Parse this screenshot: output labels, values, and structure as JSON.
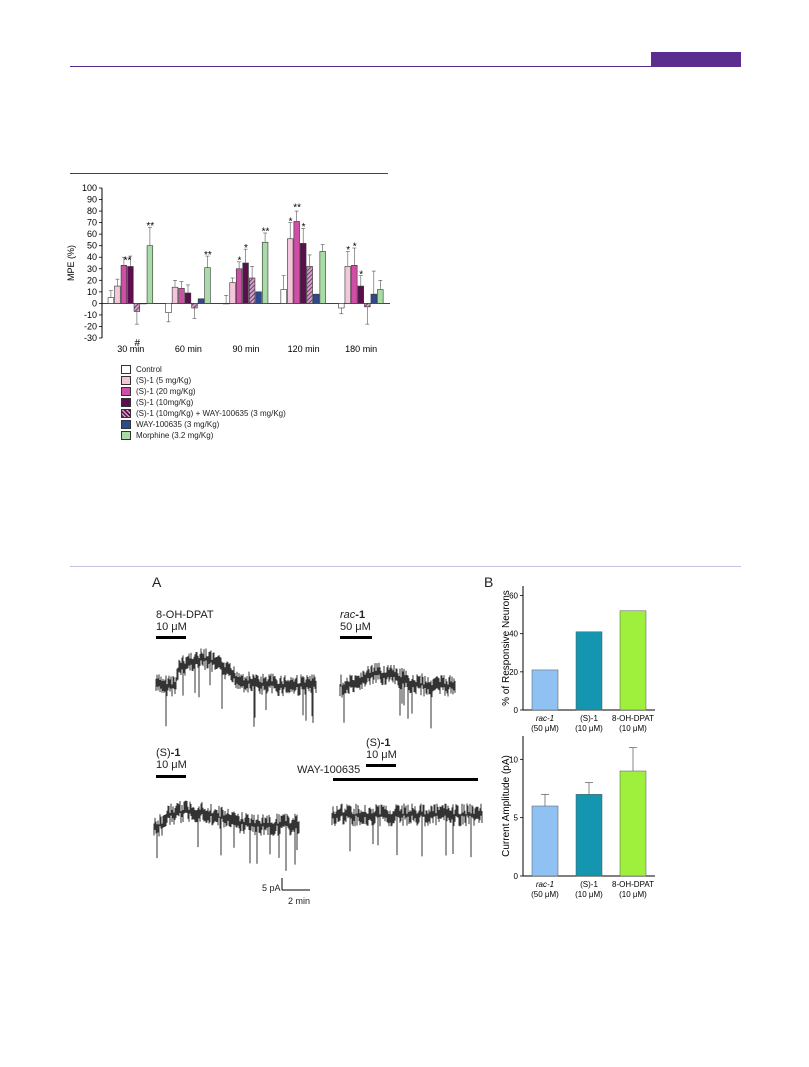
{
  "page": {
    "header_rule_color": "#5b2d8e",
    "header_tab_color": "#5b2d8e",
    "section_rule_color": "#c9bfe0"
  },
  "chart_data": [
    {
      "type": "bar",
      "categories": [
        "30 min",
        "60 min",
        "90 min",
        "120 min",
        "180 min"
      ],
      "ylabel": "MPE (%)",
      "ylim": [
        -30,
        100
      ],
      "yticks": [
        -30,
        -20,
        -10,
        0,
        10,
        20,
        30,
        40,
        50,
        60,
        70,
        80,
        90,
        100
      ],
      "series": [
        {
          "name": "Control",
          "color": "#ffffff",
          "values": [
            5,
            -8,
            0,
            12,
            -4
          ],
          "errors": [
            6,
            8,
            7,
            12,
            5
          ]
        },
        {
          "name": "(S)-1 (5 mg/Kg)",
          "color": "#f4c6dc",
          "values": [
            15,
            14,
            18,
            56,
            32
          ],
          "errors": [
            6,
            6,
            4,
            14,
            13
          ]
        },
        {
          "name": "(S)-1 (20 mg/Kg)",
          "color": "#cf4fa6",
          "values": [
            33,
            13,
            30,
            71,
            33
          ],
          "errors": [
            7,
            6,
            6,
            9,
            15
          ]
        },
        {
          "name": "(S)-1 (10mg/Kg)",
          "color": "#5c0f4e",
          "values": [
            32,
            9,
            35,
            52,
            15
          ],
          "errors": [
            9,
            7,
            12,
            13,
            9
          ]
        },
        {
          "name": "(S)-1 (10mg/Kg) + WAY-100635 (3 mg/Kg)",
          "color": "#9a5a8e",
          "values": [
            -7,
            -4,
            22,
            32,
            -3
          ],
          "errors": [
            11,
            9,
            10,
            10,
            15
          ]
        },
        {
          "name": "WAY-100635 (3 mg/Kg)",
          "color": "#2e4a8e",
          "values": [
            0,
            4,
            10,
            8,
            8
          ],
          "errors": [
            0,
            0,
            0,
            0,
            20
          ]
        },
        {
          "name": "Morphine (3.2 mg/Kg)",
          "color": "#a9dba6",
          "values": [
            50,
            31,
            53,
            45,
            12
          ],
          "errors": [
            16,
            10,
            8,
            6,
            8
          ]
        }
      ],
      "annotations": [
        {
          "text": "**",
          "category": "30 min",
          "series": 2.5,
          "y": 38
        },
        {
          "text": "#",
          "category": "30 min",
          "series": 4,
          "y": -30
        },
        {
          "text": "**",
          "category": "30 min",
          "series": 6,
          "y": 68
        },
        {
          "text": "**",
          "category": "60 min",
          "series": 6,
          "y": 43
        },
        {
          "text": "*",
          "category": "90 min",
          "series": 2,
          "y": 38
        },
        {
          "text": "*",
          "category": "90 min",
          "series": 3,
          "y": 49
        },
        {
          "text": "**",
          "category": "90 min",
          "series": 6,
          "y": 63
        },
        {
          "text": "*",
          "category": "120 min",
          "series": 1,
          "y": 72
        },
        {
          "text": "**",
          "category": "120 min",
          "series": 2,
          "y": 84
        },
        {
          "text": "*",
          "category": "120 min",
          "series": 3,
          "y": 67
        },
        {
          "text": "*",
          "category": "180 min",
          "series": 1,
          "y": 47
        },
        {
          "text": "*",
          "category": "180 min",
          "series": 2,
          "y": 50
        },
        {
          "text": "*",
          "category": "180 min",
          "series": 3,
          "y": 26
        }
      ]
    },
    {
      "type": "bar",
      "panel": "B (top)",
      "categories": [
        [
          "rac-1",
          "(50 μM)"
        ],
        [
          "(S)-1",
          "(10 μM)"
        ],
        [
          "8-OH-DPAT",
          "(10 μM)"
        ]
      ],
      "ylabel": "% of Responsive Neurons",
      "ylim": [
        0,
        65
      ],
      "yticks": [
        0,
        20,
        40,
        60
      ],
      "values": [
        21,
        41,
        52
      ],
      "colors": [
        "#8fc1f3",
        "#1496b0",
        "#9ef03d"
      ]
    },
    {
      "type": "bar",
      "panel": "B (bottom)",
      "categories": [
        [
          "rac-1",
          "(50 μM)"
        ],
        [
          "(S)-1",
          "(10 μM)"
        ],
        [
          "8-OH-DPAT",
          "(10 μM)"
        ]
      ],
      "ylabel": "Current Amplitude (pA)",
      "ylim": [
        0,
        12
      ],
      "yticks": [
        0,
        5,
        10
      ],
      "values": [
        6,
        7,
        9
      ],
      "errors": [
        1,
        1,
        2
      ],
      "colors": [
        "#8fc1f3",
        "#1496b0",
        "#9ef03d"
      ]
    }
  ],
  "panelA": {
    "letter": "A",
    "traces": [
      {
        "drug": "8-OH-DPAT",
        "conc": "10 μM"
      },
      {
        "drug_prefix": "rac",
        "drug_suffix": "-1",
        "conc": "50 μM"
      },
      {
        "drug_prefix": "(S)",
        "drug_suffix": "-1",
        "conc": "10 μM"
      },
      {
        "drug_prefix": "(S)",
        "drug_suffix": "-1",
        "conc": "10 μM",
        "extra": "WAY-100635"
      }
    ],
    "scale": {
      "y": "5 pA",
      "x": "2 min"
    }
  },
  "panelB": {
    "letter": "B"
  }
}
